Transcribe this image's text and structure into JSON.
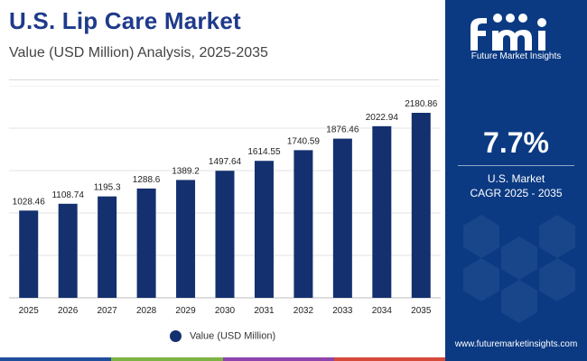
{
  "header": {
    "title": "U.S. Lip Care Market",
    "subtitle": "Value (USD Million) Analysis, 2025-2035"
  },
  "chart_data": {
    "type": "bar",
    "categories": [
      "2025",
      "2026",
      "2027",
      "2028",
      "2029",
      "2030",
      "2031",
      "2032",
      "2033",
      "2034",
      "2035"
    ],
    "series": [
      {
        "name": "Value (USD Million)",
        "values": [
          1028.46,
          1108.74,
          1195.3,
          1288.6,
          1389.2,
          1497.64,
          1614.55,
          1740.59,
          1876.46,
          2022.94,
          2180.86
        ],
        "labels": [
          "1028.46",
          "1108.74",
          "1195.3",
          "1288.6",
          "1389.2",
          "1497.64",
          "1614.55",
          "1740.59",
          "1876.46",
          "2022.94",
          "2180.86"
        ]
      }
    ],
    "title": "U.S. Lip Care Market",
    "xlabel": "",
    "ylabel": "",
    "ylim": [
      0,
      2500
    ],
    "grid": true,
    "legend": "bottom-center"
  },
  "legend": {
    "label": "Value (USD Million)"
  },
  "side_panel": {
    "brand_name": "Future Market Insights",
    "cagr_value": "7.7%",
    "cagr_label_line1": "U.S. Market",
    "cagr_label_line2": "CAGR 2025 - 2035",
    "website": "www.futuremarketinsights.com"
  },
  "colors": {
    "bar": "#14306e",
    "title": "#1e3a8a",
    "panel": "#0b3a83",
    "strip": [
      "#1f4e9c",
      "#7cb342",
      "#8e44ad",
      "#d64a3a"
    ]
  }
}
